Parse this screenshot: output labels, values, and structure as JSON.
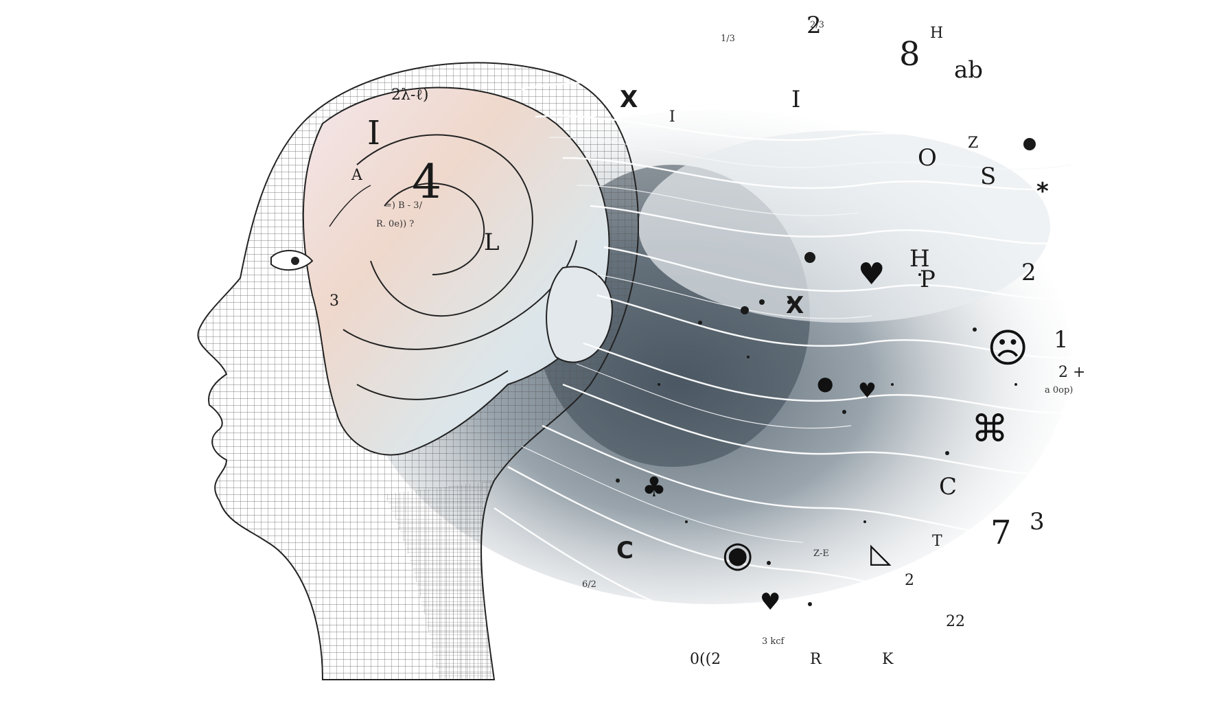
{
  "illustration": {
    "subject": "human-head-profile",
    "accent_colors": [
      "#f2d9c9",
      "#d8e4ea",
      "#cfd8e6",
      "#e6d3dc",
      "#5f7080",
      "#2b3640"
    ],
    "brain_symbols": {
      "big_digit": "4",
      "top_formula": "2λ-ℓ)",
      "fraction_a": "=) B - 3/ ",
      "fraction_b": "R. 0e)) ?",
      "label_l": "Ⅰ",
      "label_e": "L",
      "label_3": "3",
      "label_a": "A"
    },
    "floating_symbols": [
      "X",
      "I",
      "I",
      "8",
      "ab",
      "2",
      "H",
      "Z",
      "O",
      "S",
      "*",
      "H",
      "P",
      "2",
      "1",
      "7",
      "3",
      "T",
      "R",
      "K",
      "X",
      "C",
      "C",
      "2 +",
      "a 0op)",
      "Z-E",
      "22",
      "2",
      "3 kcf",
      "2/3",
      "1/3",
      "6/2",
      "0((2"
    ],
    "glyph_icons": [
      "heart-icon",
      "sad-face-icon",
      "clover-icon",
      "drop-icon",
      "wave-face-icon",
      "triangle-icon"
    ]
  }
}
